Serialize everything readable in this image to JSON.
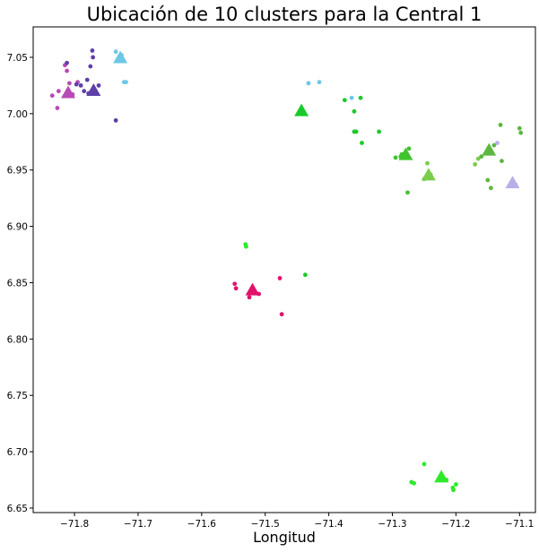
{
  "chart_data": {
    "type": "scatter",
    "title": "Ubicación de 10 clusters para la Central 1",
    "xlabel": "Longitud",
    "ylabel": "",
    "xlim": [
      -71.865,
      -71.075
    ],
    "ylim": [
      6.646,
      7.077
    ],
    "x_ticks": [
      "−71.8",
      "−71.7",
      "−71.6",
      "−71.5",
      "−71.4",
      "−71.3",
      "−71.2",
      "−71.1"
    ],
    "x_tick_values": [
      -71.8,
      -71.7,
      -71.6,
      -71.5,
      -71.4,
      -71.3,
      -71.2,
      -71.1
    ],
    "y_ticks": [
      "6.65",
      "6.70",
      "6.75",
      "6.80",
      "6.85",
      "6.90",
      "6.95",
      "7.00",
      "7.05"
    ],
    "y_tick_values": [
      6.65,
      6.7,
      6.75,
      6.8,
      6.85,
      6.9,
      6.95,
      7.0,
      7.05
    ],
    "grid": false,
    "legend": "none",
    "series": [
      {
        "color": "#b84ab6",
        "points": [
          [
            -71.835,
            7.016
          ],
          [
            -71.825,
            7.02
          ],
          [
            -71.815,
            7.043
          ],
          [
            -71.812,
            7.038
          ],
          [
            -71.803,
            7.017
          ],
          [
            -71.795,
            7.028
          ],
          [
            -71.827,
            7.005
          ],
          [
            -71.808,
            7.027
          ]
        ],
        "centroid": [
          -71.81,
          7.018
        ]
      },
      {
        "color": "#5e3fa8",
        "points": [
          [
            -71.772,
            7.056
          ],
          [
            -71.771,
            7.05
          ],
          [
            -71.775,
            7.042
          ],
          [
            -71.79,
            7.025
          ],
          [
            -71.785,
            7.02
          ],
          [
            -71.78,
            7.03
          ],
          [
            -71.762,
            7.025
          ],
          [
            -71.778,
            7.018
          ],
          [
            -71.735,
            6.994
          ],
          [
            -71.812,
            7.045
          ],
          [
            -71.797,
            7.026
          ]
        ],
        "centroid": [
          -71.77,
          7.02
        ]
      },
      {
        "color": "#6cc7e6",
        "points": [
          [
            -71.735,
            7.055
          ],
          [
            -71.73,
            7.05
          ],
          [
            -71.726,
            7.052
          ],
          [
            -71.722,
            7.028
          ],
          [
            -71.719,
            7.028
          ],
          [
            -71.432,
            7.027
          ],
          [
            -71.415,
            7.028
          ],
          [
            -71.364,
            7.014
          ]
        ],
        "centroid": [
          -71.728,
          7.049
        ]
      },
      {
        "color": "#19c92a",
        "points": [
          [
            -71.375,
            7.012
          ],
          [
            -71.36,
            7.002
          ],
          [
            -71.36,
            6.984
          ],
          [
            -71.357,
            6.984
          ],
          [
            -71.35,
            7.014
          ],
          [
            -71.348,
            6.974
          ],
          [
            -71.321,
            6.984
          ],
          [
            -71.437,
            6.857
          ]
        ],
        "centroid": [
          -71.443,
          7.002
        ]
      },
      {
        "color": "#3fc42e",
        "points": [
          [
            -71.295,
            6.961
          ],
          [
            -71.285,
            6.964
          ],
          [
            -71.274,
            6.969
          ],
          [
            -71.276,
            6.93
          ],
          [
            -71.287,
            6.962
          ]
        ],
        "centroid": [
          -71.279,
          6.963
        ]
      },
      {
        "color": "#7acd4a",
        "points": [
          [
            -71.245,
            6.956
          ],
          [
            -71.24,
            6.946
          ],
          [
            -71.25,
            6.942
          ],
          [
            -71.165,
            6.96
          ],
          [
            -71.17,
            6.955
          ]
        ],
        "centroid": [
          -71.243,
          6.945
        ]
      },
      {
        "color": "#5cb83e",
        "points": [
          [
            -71.16,
            6.962
          ],
          [
            -71.15,
            6.941
          ],
          [
            -71.145,
            6.934
          ],
          [
            -71.13,
            6.99
          ],
          [
            -71.128,
            6.958
          ],
          [
            -71.1,
            6.987
          ],
          [
            -71.098,
            6.983
          ],
          [
            -71.14,
            6.972
          ]
        ],
        "centroid": [
          -71.148,
          6.967
        ]
      },
      {
        "color": "#b9aee8",
        "points": [
          [
            -71.135,
            6.974
          ],
          [
            -71.11,
            6.936
          ],
          [
            -71.106,
            6.937
          ]
        ],
        "centroid": [
          -71.111,
          6.938
        ]
      },
      {
        "color": "#e0126b",
        "points": [
          [
            -71.548,
            6.849
          ],
          [
            -71.546,
            6.845
          ],
          [
            -71.525,
            6.837
          ],
          [
            -71.51,
            6.84
          ],
          [
            -71.477,
            6.854
          ],
          [
            -71.474,
            6.822
          ]
        ],
        "centroid": [
          -71.52,
          6.843
        ]
      },
      {
        "color": "#2eea2a",
        "points": [
          [
            -71.53,
            6.882
          ],
          [
            -71.531,
            6.884
          ],
          [
            -71.27,
            6.673
          ],
          [
            -71.266,
            6.672
          ],
          [
            -71.25,
            6.689
          ],
          [
            -71.215,
            6.675
          ],
          [
            -71.205,
            6.668
          ],
          [
            -71.204,
            6.666
          ],
          [
            -71.2,
            6.671
          ]
        ],
        "centroid": [
          -71.223,
          6.677
        ]
      }
    ]
  }
}
